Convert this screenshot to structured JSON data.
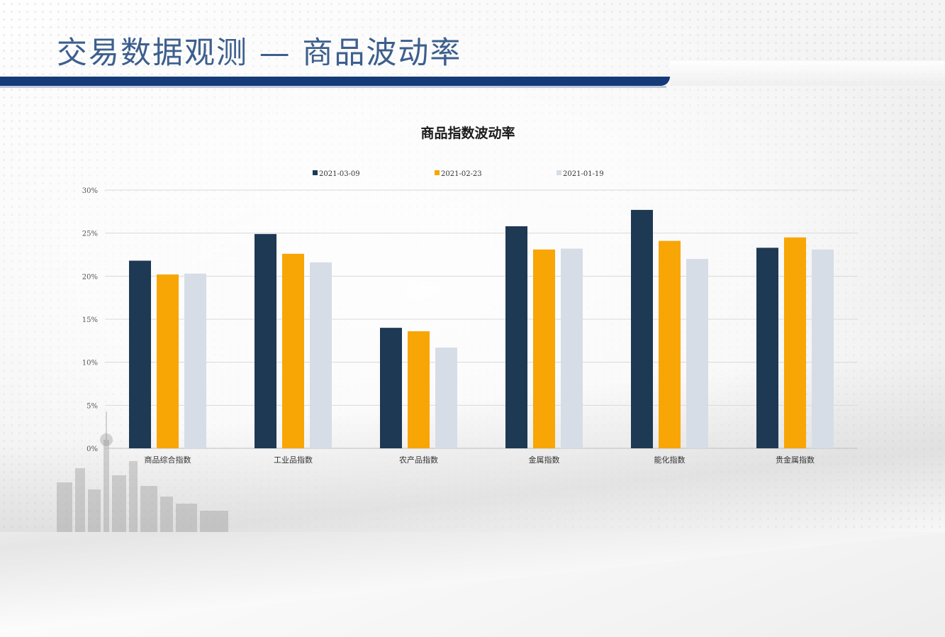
{
  "page": {
    "title": "交易数据观测  —  商品波动率"
  },
  "colors": {
    "title_text": "#3d5f8d",
    "title_bar": "#153a78",
    "series": [
      "#1e3953",
      "#f8a506",
      "#d6dde6"
    ],
    "gridline": "#d9d9d9"
  },
  "chart_data": {
    "type": "bar",
    "title": "商品指数波动率",
    "xlabel": "",
    "ylabel": "",
    "ylim": [
      0,
      0.3
    ],
    "yticks": [
      0,
      0.05,
      0.1,
      0.15,
      0.2,
      0.25,
      0.3
    ],
    "ytick_labels": [
      "0%",
      "5%",
      "10%",
      "15%",
      "20%",
      "25%",
      "30%"
    ],
    "grid": true,
    "legend_position": "top-center",
    "categories": [
      "商品综合指数",
      "工业品指数",
      "农产品指数",
      "金属指数",
      "能化指数",
      "贵金属指数"
    ],
    "series": [
      {
        "name": "2021-03-09",
        "values": [
          0.218,
          0.249,
          0.14,
          0.258,
          0.277,
          0.233
        ]
      },
      {
        "name": "2021-02-23",
        "values": [
          0.202,
          0.226,
          0.136,
          0.231,
          0.241,
          0.245
        ]
      },
      {
        "name": "2021-01-19",
        "values": [
          0.203,
          0.216,
          0.117,
          0.232,
          0.22,
          0.231
        ]
      }
    ]
  }
}
